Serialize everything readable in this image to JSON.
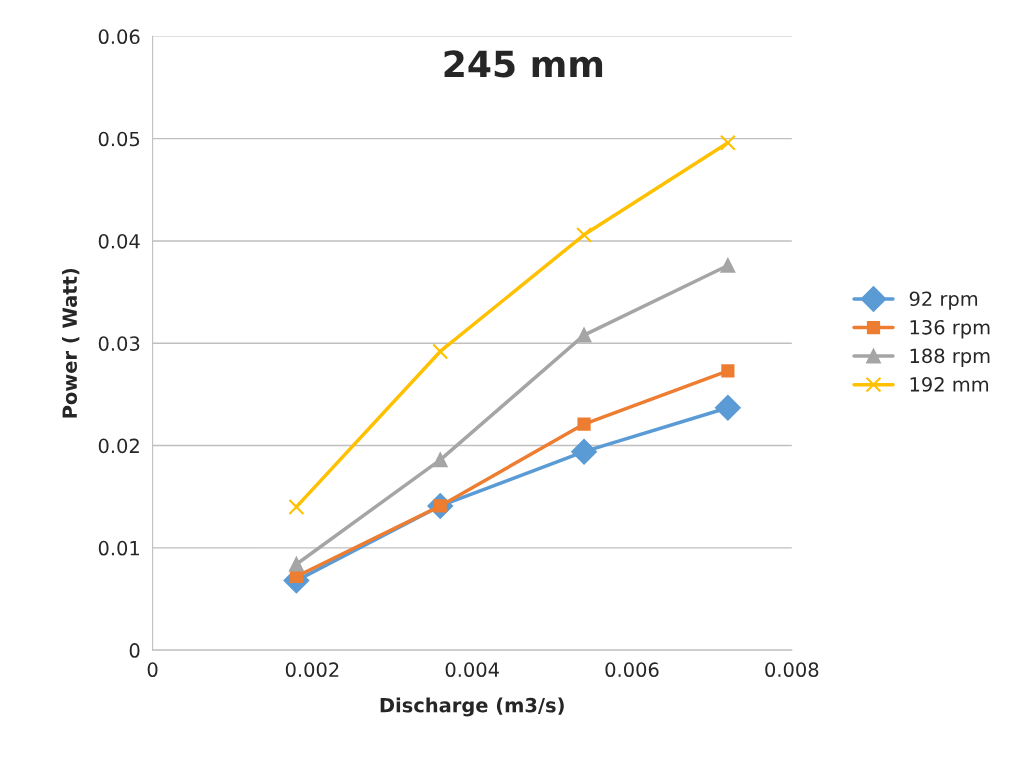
{
  "chart_data": {
    "type": "line",
    "title": "245 mm",
    "xlabel": "Discharge (m3/s)",
    "ylabel": "Power ( Watt)",
    "x": [
      0.0018,
      0.0036,
      0.0054,
      0.0072
    ],
    "series": [
      {
        "name": "92 rpm",
        "color": "#5b9bd5",
        "marker": "diamond",
        "values": [
          0.0068,
          0.0141,
          0.0194,
          0.0237
        ]
      },
      {
        "name": "136 rpm",
        "color": "#ed7d31",
        "marker": "square",
        "values": [
          0.0072,
          0.0141,
          0.0221,
          0.0273
        ]
      },
      {
        "name": "188 rpm",
        "color": "#a5a5a5",
        "marker": "triangle",
        "values": [
          0.0084,
          0.0186,
          0.0308,
          0.0376
        ]
      },
      {
        "name": "192 mm",
        "color": "#ffc000",
        "marker": "cross",
        "values": [
          0.014,
          0.0292,
          0.0406,
          0.0496
        ]
      }
    ],
    "xlim": [
      0,
      0.008
    ],
    "xticks": [
      0,
      0.002,
      0.004,
      0.006,
      0.008
    ],
    "ylim": [
      0,
      0.06
    ],
    "yticks": [
      0,
      0.01,
      0.02,
      0.03,
      0.04,
      0.05,
      0.06
    ],
    "grid": "y",
    "legend": "right",
    "line_style": "solid"
  }
}
